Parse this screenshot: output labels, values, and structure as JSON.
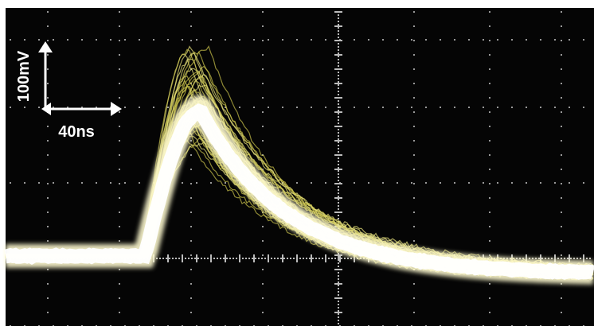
{
  "annotations": {
    "vertical_scale": "100mV",
    "horizontal_scale": "40ns"
  }
}
